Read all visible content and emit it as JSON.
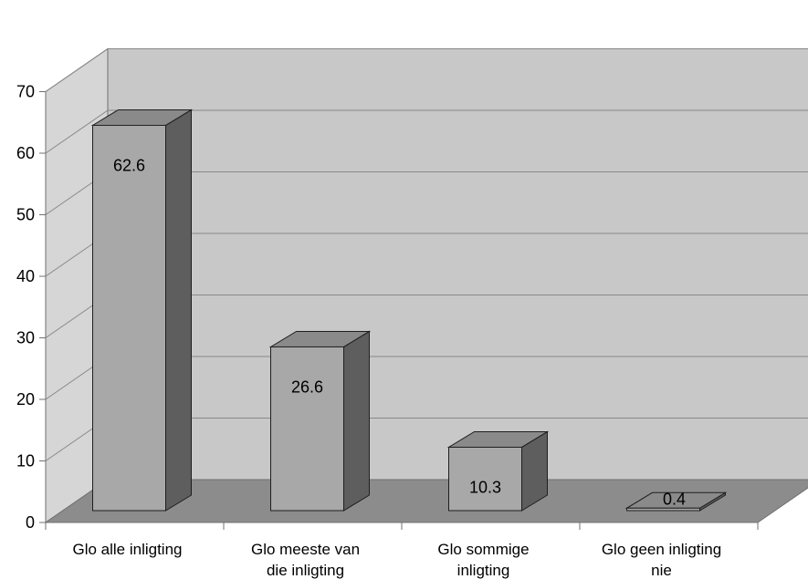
{
  "chart_data": {
    "type": "bar",
    "title": "",
    "xlabel": "",
    "ylabel": "",
    "ylim": [
      0,
      70
    ],
    "yticks": [
      0,
      10,
      20,
      30,
      40,
      50,
      60,
      70
    ],
    "grid": true,
    "legend": "none",
    "style": "3d-clustered-column",
    "categories": [
      [
        "Glo alle inligting"
      ],
      [
        "Glo meeste van",
        "die inligting"
      ],
      [
        "Glo sommige",
        "inligting"
      ],
      [
        "Glo geen inligting",
        "nie"
      ]
    ],
    "values": [
      62.6,
      26.6,
      10.3,
      0.4
    ],
    "data_labels": [
      "62.6",
      "26.6",
      "10.3",
      "0.4"
    ]
  },
  "colors": {
    "back_wall": "#c8c8c8",
    "side_wall": "#d6d6d6",
    "floor": "#8c8c8c",
    "gridline": "#888888",
    "axis": "#707070",
    "bar_front": "#a8a8a8",
    "bar_top": "#8a8a8a",
    "bar_side": "#5e5e5e",
    "bar_edge": "#1e1e1e"
  }
}
